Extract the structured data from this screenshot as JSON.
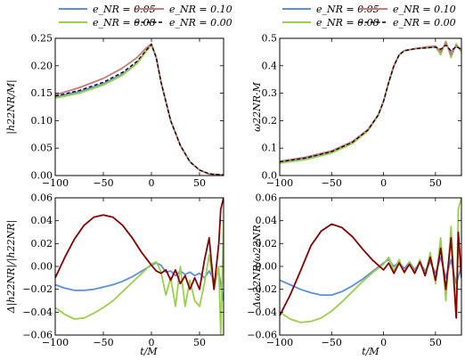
{
  "figure": {
    "x_label": "t/M",
    "legend_left": [
      {
        "label": "e_NR = 0.05",
        "color": "#5b8fe0",
        "dash": false
      },
      {
        "label": "e_NR = 0.08",
        "color": "#9bd04a",
        "dash": false
      }
    ],
    "legend_right": [
      {
        "label": "e_NR = 0.10",
        "color": "#c97a7a",
        "dash": false
      },
      {
        "label": "e_NR = 0.00",
        "color": "#000000",
        "dash": true
      }
    ]
  },
  "chart_data": [
    {
      "type": "line",
      "ylabel": "|h22NR/M|",
      "xlim": [
        -100,
        75
      ],
      "ylim": [
        0,
        0.25
      ],
      "xticks": [
        -100,
        -50,
        0,
        50
      ],
      "xtick_labels": [
        "−100",
        "−50",
        "0",
        "50"
      ],
      "yticks": [
        0,
        0.05,
        0.1,
        0.15,
        0.2,
        0.25
      ],
      "ytick_labels": [
        "0.00",
        "0.05",
        "0.10",
        "0.15",
        "0.20",
        "0.25"
      ],
      "series": [
        {
          "name": "e_NR = 0.05",
          "color": "#5b8fe0",
          "x": [
            -100,
            -75,
            -50,
            -30,
            -15,
            -5,
            0,
            5,
            10,
            20,
            30,
            40,
            50,
            60,
            75
          ],
          "y": [
            0.143,
            0.153,
            0.167,
            0.185,
            0.205,
            0.228,
            0.238,
            0.215,
            0.17,
            0.1,
            0.055,
            0.025,
            0.01,
            0.003,
            0.001
          ]
        },
        {
          "name": "e_NR = 0.08",
          "color": "#9bd04a",
          "x": [
            -100,
            -75,
            -50,
            -30,
            -15,
            -5,
            0,
            5,
            10,
            20,
            30,
            40,
            50,
            60,
            75
          ],
          "y": [
            0.141,
            0.15,
            0.165,
            0.183,
            0.204,
            0.227,
            0.238,
            0.215,
            0.17,
            0.1,
            0.055,
            0.025,
            0.01,
            0.003,
            0.001
          ]
        },
        {
          "name": "e_NR = 0.10",
          "color": "#c97a7a",
          "x": [
            -100,
            -75,
            -50,
            -30,
            -15,
            -5,
            0,
            5,
            10,
            20,
            30,
            40,
            50,
            60,
            75
          ],
          "y": [
            0.147,
            0.16,
            0.177,
            0.196,
            0.215,
            0.233,
            0.24,
            0.215,
            0.17,
            0.1,
            0.055,
            0.025,
            0.01,
            0.003,
            0.001
          ]
        },
        {
          "name": "e_NR = 0.00",
          "color": "#000000",
          "dash": true,
          "x": [
            -100,
            -75,
            -50,
            -30,
            -15,
            -5,
            0,
            5,
            10,
            20,
            30,
            40,
            50,
            60,
            75
          ],
          "y": [
            0.145,
            0.155,
            0.17,
            0.188,
            0.208,
            0.229,
            0.239,
            0.215,
            0.17,
            0.1,
            0.055,
            0.025,
            0.01,
            0.003,
            0.001
          ]
        }
      ]
    },
    {
      "type": "line",
      "ylabel": "ω22NR·M",
      "xlim": [
        -100,
        75
      ],
      "ylim": [
        0,
        0.5
      ],
      "xticks": [
        -100,
        -50,
        0,
        50
      ],
      "xtick_labels": [
        "−100",
        "−50",
        "0",
        "50"
      ],
      "yticks": [
        0,
        0.1,
        0.2,
        0.3,
        0.4,
        0.5
      ],
      "ytick_labels": [
        "0.0",
        "0.1",
        "0.2",
        "0.3",
        "0.4",
        "0.5"
      ],
      "series": [
        {
          "name": "e_NR = 0.05",
          "color": "#5b8fe0",
          "x": [
            -100,
            -75,
            -50,
            -30,
            -15,
            -5,
            0,
            5,
            10,
            15,
            20,
            30,
            40,
            50,
            55,
            60,
            65,
            70,
            75
          ],
          "y": [
            0.048,
            0.062,
            0.085,
            0.12,
            0.165,
            0.22,
            0.27,
            0.34,
            0.4,
            0.44,
            0.455,
            0.462,
            0.465,
            0.468,
            0.455,
            0.48,
            0.45,
            0.47,
            0.46
          ]
        },
        {
          "name": "e_NR = 0.08",
          "color": "#9bd04a",
          "x": [
            -100,
            -75,
            -50,
            -30,
            -15,
            -5,
            0,
            5,
            10,
            15,
            20,
            30,
            40,
            50,
            55,
            60,
            65,
            70,
            75
          ],
          "y": [
            0.045,
            0.058,
            0.082,
            0.117,
            0.163,
            0.219,
            0.27,
            0.34,
            0.4,
            0.44,
            0.455,
            0.462,
            0.466,
            0.47,
            0.44,
            0.49,
            0.43,
            0.48,
            0.45
          ]
        },
        {
          "name": "e_NR = 0.10",
          "color": "#c97a7a",
          "x": [
            -100,
            -75,
            -50,
            -30,
            -15,
            -5,
            0,
            5,
            10,
            15,
            20,
            30,
            40,
            50,
            55,
            60,
            65,
            70,
            75
          ],
          "y": [
            0.052,
            0.067,
            0.09,
            0.124,
            0.168,
            0.222,
            0.272,
            0.34,
            0.4,
            0.44,
            0.455,
            0.462,
            0.468,
            0.472,
            0.45,
            0.485,
            0.44,
            0.475,
            0.455
          ]
        },
        {
          "name": "e_NR = 0.00",
          "color": "#000000",
          "dash": true,
          "x": [
            -100,
            -75,
            -50,
            -30,
            -15,
            -5,
            0,
            5,
            10,
            15,
            20,
            30,
            40,
            50,
            55,
            60,
            65,
            70,
            75
          ],
          "y": [
            0.05,
            0.064,
            0.087,
            0.121,
            0.166,
            0.221,
            0.271,
            0.34,
            0.4,
            0.44,
            0.455,
            0.462,
            0.465,
            0.468,
            0.46,
            0.475,
            0.455,
            0.47,
            0.46
          ]
        }
      ]
    },
    {
      "type": "line",
      "ylabel": "Δ|h22NR|/|h22NR|",
      "xlim": [
        -100,
        75
      ],
      "ylim": [
        -0.06,
        0.06
      ],
      "xticks": [
        -100,
        -50,
        0,
        50
      ],
      "xtick_labels": [
        "−100",
        "−50",
        "0",
        "50"
      ],
      "yticks": [
        -0.06,
        -0.04,
        -0.02,
        0,
        0.02,
        0.04,
        0.06
      ],
      "ytick_labels": [
        "−0.06",
        "−0.04",
        "−0.02",
        "0.00",
        "0.02",
        "0.04",
        "0.06"
      ],
      "series": [
        {
          "name": "e_NR = 0.05",
          "color": "#5b8fe0",
          "x": [
            -100,
            -90,
            -80,
            -70,
            -60,
            -50,
            -40,
            -30,
            -20,
            -10,
            0,
            5,
            10,
            15,
            20,
            25,
            30,
            35,
            40,
            45,
            50,
            55,
            60,
            65,
            70,
            75
          ],
          "y": [
            -0.016,
            -0.019,
            -0.021,
            -0.021,
            -0.02,
            -0.018,
            -0.016,
            -0.013,
            -0.009,
            -0.004,
            0.001,
            0.003,
            0.001,
            -0.005,
            -0.004,
            -0.008,
            -0.004,
            -0.007,
            -0.005,
            -0.008,
            -0.006,
            -0.01,
            -0.004,
            -0.012,
            -0.005,
            -0.03
          ]
        },
        {
          "name": "e_NR = 0.08",
          "color": "#9bd04a",
          "x": [
            -100,
            -90,
            -80,
            -70,
            -60,
            -50,
            -40,
            -30,
            -20,
            -10,
            0,
            5,
            10,
            15,
            20,
            25,
            30,
            35,
            40,
            45,
            50,
            55,
            60,
            65,
            70,
            72,
            75
          ],
          "y": [
            -0.036,
            -0.042,
            -0.046,
            -0.045,
            -0.041,
            -0.036,
            -0.03,
            -0.022,
            -0.014,
            -0.006,
            0.002,
            0.004,
            -0.005,
            -0.025,
            -0.01,
            -0.035,
            0.0,
            -0.035,
            -0.012,
            -0.03,
            -0.035,
            -0.015,
            0.01,
            -0.02,
            0.0,
            -0.06,
            0.04
          ]
        },
        {
          "name": "e_NR = 0.10",
          "color": "#8b0000",
          "x": [
            -100,
            -90,
            -80,
            -70,
            -60,
            -50,
            -40,
            -30,
            -20,
            -10,
            0,
            5,
            10,
            15,
            20,
            25,
            30,
            35,
            40,
            45,
            50,
            55,
            60,
            65,
            70,
            72,
            75
          ],
          "y": [
            -0.01,
            0.008,
            0.024,
            0.036,
            0.043,
            0.045,
            0.043,
            0.036,
            0.025,
            0.012,
            0.001,
            -0.004,
            -0.006,
            -0.003,
            -0.012,
            -0.003,
            -0.015,
            -0.008,
            -0.02,
            -0.01,
            -0.02,
            0.005,
            0.025,
            -0.02,
            0.02,
            0.05,
            0.06
          ]
        }
      ]
    },
    {
      "type": "line",
      "ylabel": "Δω22NR/ω22NR",
      "xlim": [
        -100,
        75
      ],
      "ylim": [
        -0.06,
        0.06
      ],
      "xticks": [
        -100,
        -50,
        0,
        50
      ],
      "xtick_labels": [
        "−100",
        "−50",
        "0",
        "50"
      ],
      "yticks": [
        -0.06,
        -0.04,
        -0.02,
        0,
        0.02,
        0.04,
        0.06
      ],
      "ytick_labels": [
        "−0.06",
        "−0.04",
        "−0.02",
        "0.00",
        "0.02",
        "0.04",
        "0.06"
      ],
      "series": [
        {
          "name": "e_NR = 0.05",
          "color": "#5b8fe0",
          "x": [
            -100,
            -90,
            -80,
            -70,
            -60,
            -50,
            -40,
            -30,
            -20,
            -10,
            0,
            5,
            10,
            15,
            20,
            25,
            30,
            35,
            40,
            45,
            50,
            55,
            60,
            65,
            70,
            75
          ],
          "y": [
            -0.012,
            -0.016,
            -0.02,
            -0.023,
            -0.025,
            -0.025,
            -0.022,
            -0.017,
            -0.011,
            -0.004,
            0.003,
            0.006,
            0.0,
            0.004,
            -0.002,
            0.004,
            -0.003,
            0.004,
            -0.004,
            0.004,
            -0.006,
            0.008,
            -0.01,
            0.006,
            -0.015,
            0.0
          ]
        },
        {
          "name": "e_NR = 0.08",
          "color": "#9bd04a",
          "x": [
            -100,
            -90,
            -80,
            -70,
            -60,
            -50,
            -40,
            -30,
            -20,
            -10,
            0,
            5,
            10,
            15,
            20,
            25,
            30,
            35,
            40,
            45,
            50,
            55,
            60,
            65,
            70,
            72,
            75
          ],
          "y": [
            -0.04,
            -0.046,
            -0.049,
            -0.048,
            -0.045,
            -0.039,
            -0.031,
            -0.022,
            -0.013,
            -0.005,
            0.002,
            0.008,
            -0.004,
            0.006,
            -0.006,
            0.004,
            -0.006,
            0.006,
            -0.008,
            0.012,
            -0.015,
            0.025,
            -0.03,
            0.035,
            -0.045,
            0.05,
            0.06
          ]
        },
        {
          "name": "e_NR = 0.10",
          "color": "#8b0000",
          "x": [
            -100,
            -90,
            -80,
            -70,
            -60,
            -50,
            -40,
            -30,
            -20,
            -10,
            0,
            5,
            10,
            15,
            20,
            25,
            30,
            35,
            40,
            45,
            50,
            55,
            60,
            65,
            70,
            72,
            75
          ],
          "y": [
            -0.043,
            -0.025,
            -0.004,
            0.018,
            0.031,
            0.037,
            0.034,
            0.026,
            0.015,
            0.005,
            -0.003,
            0.003,
            -0.006,
            0.003,
            -0.005,
            0.002,
            -0.006,
            0.004,
            -0.008,
            0.008,
            -0.012,
            0.016,
            -0.02,
            0.025,
            -0.045,
            0.03,
            -0.01
          ]
        }
      ]
    }
  ]
}
